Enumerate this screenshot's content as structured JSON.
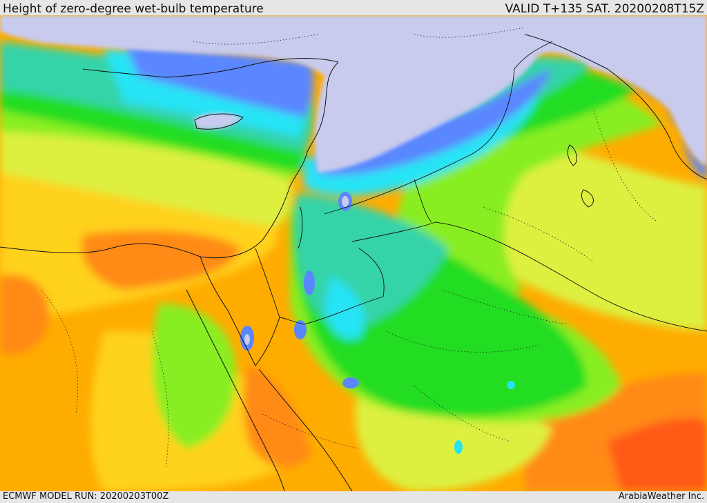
{
  "header": {
    "title": "Height of zero-degree wet-bulb temperature",
    "valid": "VALID T+135 SAT. 20200208T15Z"
  },
  "footer": {
    "model_run": "ECMWF MODEL RUN: 20200203T00Z",
    "credit": "ArabiaWeather Inc."
  },
  "map": {
    "variable": "zero-degree wet-bulb height",
    "palette": {
      "below_freezing": "#c8cbee",
      "lowest": "#3f5ff0",
      "very_low": "#5a86ff",
      "low": "#26e3f5",
      "teal": "#36d3a8",
      "mid_green": "#22dd22",
      "light_green": "#88ee22",
      "yellow_green": "#ddf040",
      "yellow": "#ffd21a",
      "orange": "#ffac00",
      "dark_orange": "#ff8a18",
      "red_orange": "#ff5a12"
    },
    "features": [
      "coastlines",
      "country-borders",
      "region-borders-dotted"
    ]
  }
}
